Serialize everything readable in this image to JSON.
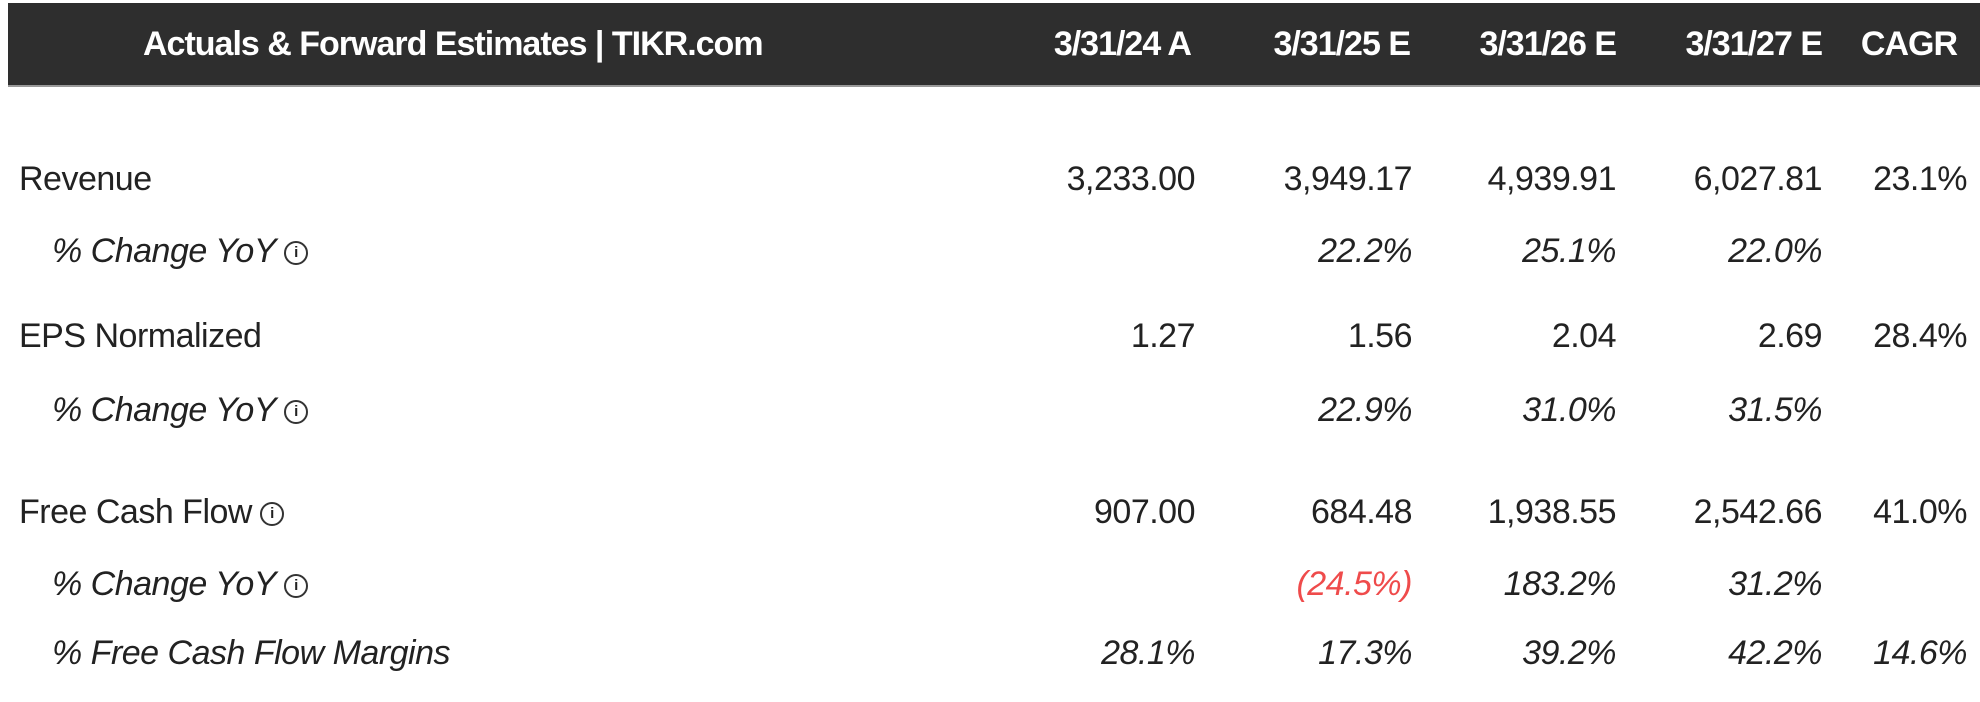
{
  "header": {
    "title": "Actuals & Forward Estimates | TIKR.com",
    "columns": [
      "3/31/24 A",
      "3/31/25 E",
      "3/31/26 E",
      "3/31/27 E",
      "CAGR"
    ]
  },
  "rows": [
    {
      "label": "Revenue",
      "values": [
        "3,233.00",
        "3,949.17",
        "4,939.91",
        "6,027.81",
        "23.1%"
      ]
    },
    {
      "label": "% Change YoY",
      "values": [
        "",
        "22.2%",
        "25.1%",
        "22.0%",
        ""
      ]
    },
    {
      "label": "EPS Normalized",
      "values": [
        "1.27",
        "1.56",
        "2.04",
        "2.69",
        "28.4%"
      ]
    },
    {
      "label": "% Change YoY",
      "values": [
        "",
        "22.9%",
        "31.0%",
        "31.5%",
        ""
      ]
    },
    {
      "label": "Free Cash Flow",
      "values": [
        "907.00",
        "684.48",
        "1,938.55",
        "2,542.66",
        "41.0%"
      ]
    },
    {
      "label": "% Change YoY",
      "values": [
        "",
        "(24.5%)",
        "183.2%",
        "31.2%",
        ""
      ]
    },
    {
      "label": "% Free Cash Flow Margins",
      "values": [
        "28.1%",
        "17.3%",
        "39.2%",
        "42.2%",
        "14.6%"
      ]
    }
  ],
  "info_icon": "i",
  "colors": {
    "header_bg": "#2e2e2e",
    "negative": "#ef4b4b"
  }
}
